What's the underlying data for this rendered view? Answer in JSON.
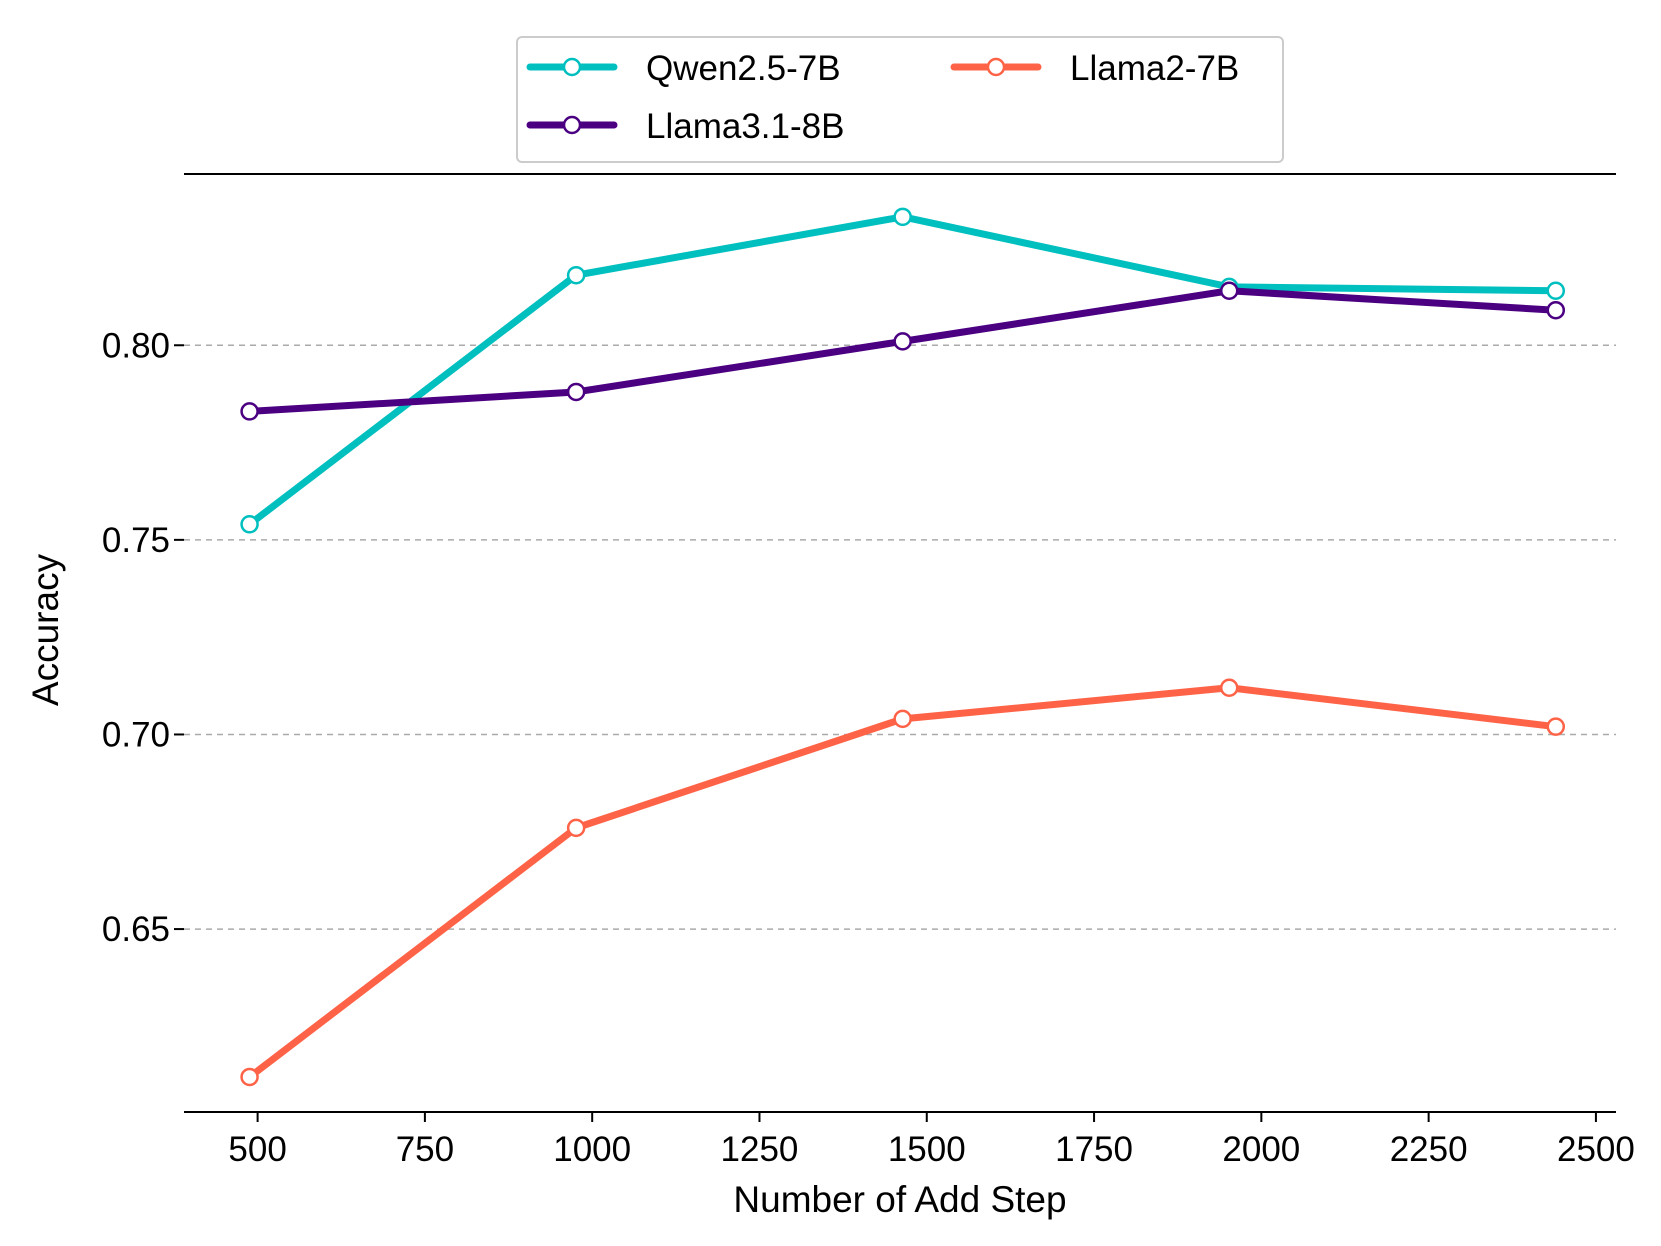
{
  "chart_data": {
    "type": "line",
    "title": "",
    "xlabel": "Number of Add Step",
    "ylabel": "Accuracy",
    "x": [
      488,
      976,
      1464,
      1952,
      2440
    ],
    "xlim": [
      390,
      2530
    ],
    "ylim": [
      0.603,
      0.844
    ],
    "xticks": [
      500,
      750,
      1000,
      1250,
      1500,
      1750,
      2000,
      2250,
      2500
    ],
    "xtick_labels": [
      "500",
      "750",
      "1000",
      "1250",
      "1500",
      "1750",
      "2000",
      "2250",
      "2500"
    ],
    "yticks": [
      0.65,
      0.7,
      0.75,
      0.8
    ],
    "ytick_labels": [
      "0.65",
      "0.70",
      "0.75",
      "0.80"
    ],
    "grid": "horizontal-dashed",
    "legend_position": "top-center",
    "series": [
      {
        "name": "Qwen2.5-7B",
        "color": "#00BFBF",
        "values": [
          0.754,
          0.818,
          0.833,
          0.815,
          0.814
        ]
      },
      {
        "name": "Llama3.1-8B",
        "color": "#4B0082",
        "values": [
          0.783,
          0.788,
          0.801,
          0.814,
          0.809
        ]
      },
      {
        "name": "Llama2-7B",
        "color": "#FF6347",
        "values": [
          0.612,
          0.676,
          0.704,
          0.712,
          0.702
        ]
      }
    ]
  }
}
